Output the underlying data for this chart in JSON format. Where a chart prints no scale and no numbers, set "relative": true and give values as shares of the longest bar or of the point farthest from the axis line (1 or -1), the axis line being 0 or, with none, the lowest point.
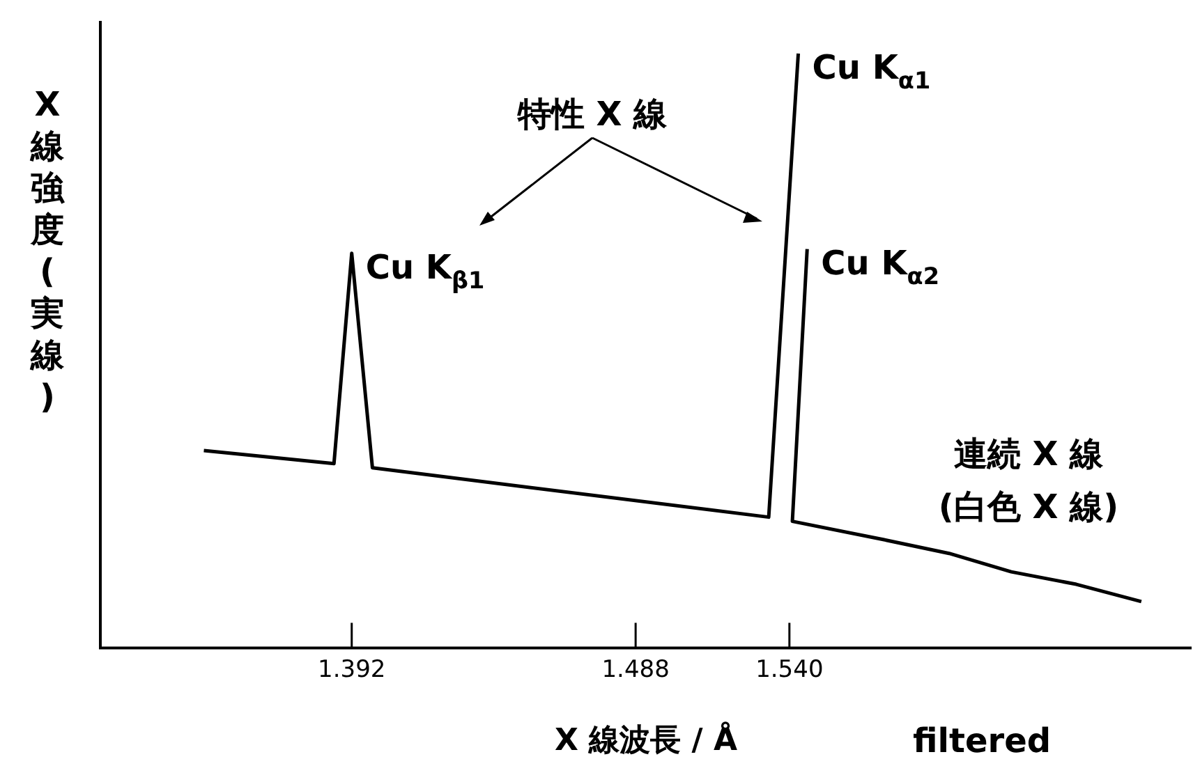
{
  "chart_data": {
    "type": "line",
    "relative": true,
    "xlabel": "X 線波長 / Å",
    "ylabel": "X 線強度(実線)",
    "xlim": [
      1.307,
      1.676
    ],
    "xticks": [
      1.392,
      1.488,
      {
        "value": 1.54,
        "label": "1.540"
      }
    ],
    "series": [
      {
        "color": "#000000",
        "x": [
          1.342,
          1.386,
          1.392,
          1.399,
          1.533,
          1.543
        ],
        "values": [
          0.332,
          0.31,
          0.664,
          0.303,
          0.22,
          1
        ]
      },
      {
        "color": "#000000",
        "x": [
          1.546,
          1.541,
          1.572,
          1.594,
          1.615,
          1.637,
          1.659
        ],
        "values": [
          0.671,
          0.213,
          0.182,
          0.159,
          0.128,
          0.107,
          0.078
        ]
      }
    ],
    "annotations": [
      {
        "text": "Cu K$_{α1}$",
        "x": 1.543,
        "y": 1
      },
      {
        "text": "Cu K$_{α2}$",
        "x": 1.546,
        "y": 0.671
      },
      {
        "text": "Cu K$_{β1}$",
        "x": 1.392,
        "y": 0.664
      },
      "特性 X 線",
      "連続 X 線\n(白色 X 線)",
      "filtered"
    ],
    "legend": false,
    "marker": "none",
    "line_style": "solid",
    "grid": false
  }
}
